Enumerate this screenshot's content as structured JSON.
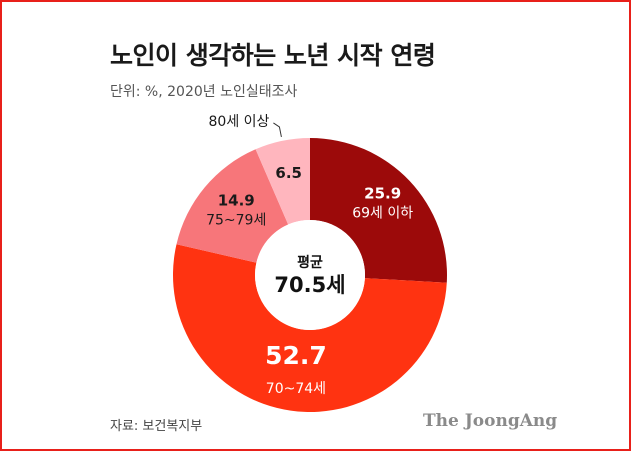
{
  "title": "노인이 생각하는 노년 시작 연령",
  "subtitle": "단위: %, 2020년 노인실태조사",
  "source": "자료: 보건복지부",
  "brand": "The JoongAng",
  "chart_data": {
    "type": "pie",
    "style": "donut",
    "center_label": "평균",
    "center_value": "70.5세",
    "slices": [
      {
        "label": "69세 이하",
        "value": 25.9,
        "value_text": "25.9",
        "color": "#9c0a0a"
      },
      {
        "label": "70~74세",
        "value": 52.7,
        "value_text": "52.7",
        "color": "#ff3311"
      },
      {
        "label": "75~79세",
        "value": 14.9,
        "value_text": "14.9",
        "color": "#f7767a"
      },
      {
        "label": "80세 이상",
        "value": 6.5,
        "value_text": "6.5",
        "color": "#ffb6be"
      }
    ]
  }
}
